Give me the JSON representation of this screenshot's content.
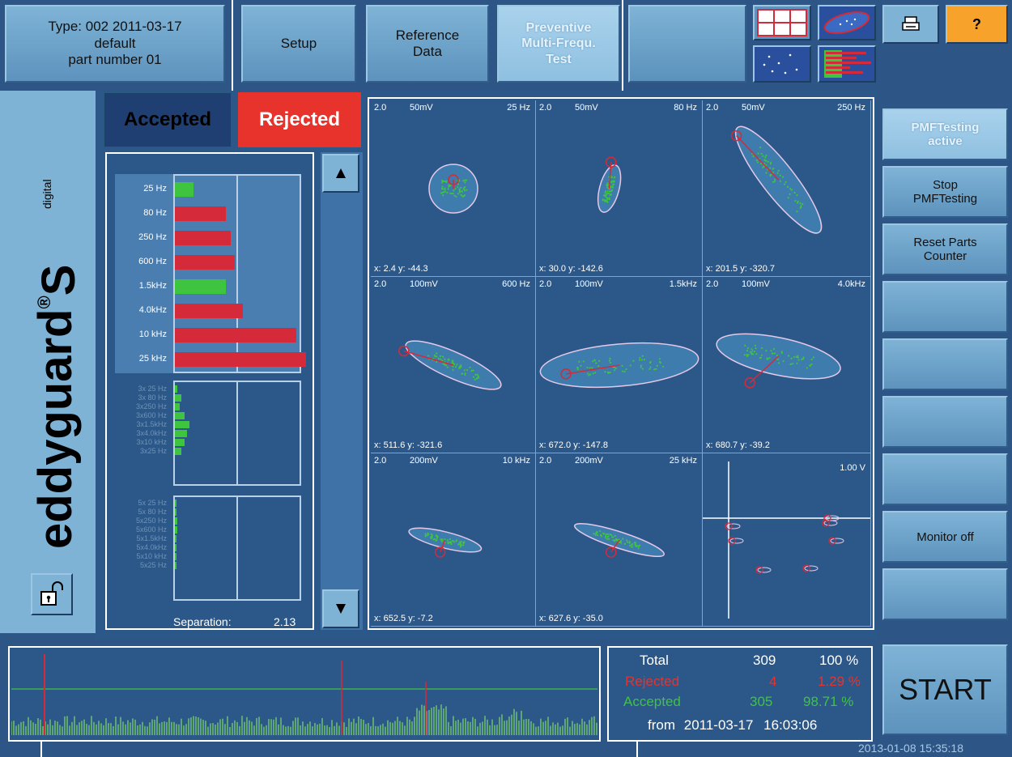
{
  "header": {
    "type_line": "Type: 002   2011-03-17",
    "profile": "default",
    "part": "part number 01",
    "tabs": [
      {
        "label": "Setup"
      },
      {
        "label": "Reference\nData"
      },
      {
        "label": "Preventive\nMulti-Frequ.\nTest"
      },
      {
        "label": ""
      }
    ],
    "view_icons": [
      "grid-view-icon",
      "ellipse-view-icon",
      "scatter-view-icon",
      "bar-view-icon"
    ],
    "print_icon": "printer-icon",
    "help_label": "?"
  },
  "brand": {
    "name": "eddyguard",
    "reg": "®",
    "suffix": "S",
    "sub": "digital"
  },
  "lock_icon": "unlock-icon",
  "status": {
    "accepted_label": "Accepted",
    "rejected_label": "Rejected"
  },
  "frequencies": {
    "bars": [
      {
        "label": "25 Hz",
        "value": 0.15,
        "status": "accepted"
      },
      {
        "label": "80 Hz",
        "value": 0.42,
        "status": "rejected"
      },
      {
        "label": "250 Hz",
        "value": 0.46,
        "status": "rejected"
      },
      {
        "label": "600 Hz",
        "value": 0.49,
        "status": "rejected"
      },
      {
        "label": "1.5kHz",
        "value": 0.42,
        "status": "accepted"
      },
      {
        "label": "4.0kHz",
        "value": 0.56,
        "status": "rejected"
      },
      {
        "label": "10 kHz",
        "value": 1.0,
        "status": "rejected"
      },
      {
        "label": "25 kHz",
        "value": 1.08,
        "status": "rejected"
      }
    ],
    "x3": [
      {
        "label": "3x 25 Hz",
        "value": 0.02
      },
      {
        "label": "3x 80 Hz",
        "value": 0.05
      },
      {
        "label": "3x250 Hz",
        "value": 0.04
      },
      {
        "label": "3x600 Hz",
        "value": 0.08
      },
      {
        "label": "3x1.5kHz",
        "value": 0.12
      },
      {
        "label": "3x4.0kHz",
        "value": 0.1
      },
      {
        "label": "3x10 kHz",
        "value": 0.08
      },
      {
        "label": "3x25 Hz",
        "value": 0.05
      }
    ],
    "x5": [
      {
        "label": "5x 25 Hz",
        "value": 0.01
      },
      {
        "label": "5x 80 Hz",
        "value": 0.01
      },
      {
        "label": "5x250 Hz",
        "value": 0.02
      },
      {
        "label": "5x600 Hz",
        "value": 0.02
      },
      {
        "label": "5x1.5kHz",
        "value": 0.01
      },
      {
        "label": "5x4.0kHz",
        "value": 0.01
      },
      {
        "label": "5x10 kHz",
        "value": 0.01
      },
      {
        "label": "5x25 Hz",
        "value": 0.01
      }
    ],
    "separation_label": "Separation:",
    "separation_value": "2.13"
  },
  "plots": [
    {
      "gain": "2.0",
      "range": "50mV",
      "freq": "25 Hz",
      "coord": "x: 2.4   y: -44.3"
    },
    {
      "gain": "2.0",
      "range": "50mV",
      "freq": "80 Hz",
      "coord": "x: 30.0  y: -142.6"
    },
    {
      "gain": "2.0",
      "range": "50mV",
      "freq": "250 Hz",
      "coord": "x: 201.5 y: -320.7"
    },
    {
      "gain": "2.0",
      "range": "100mV",
      "freq": "600 Hz",
      "coord": "x: 511.6 y: -321.6"
    },
    {
      "gain": "2.0",
      "range": "100mV",
      "freq": "1.5kHz",
      "coord": "x: 672.0 y: -147.8"
    },
    {
      "gain": "2.0",
      "range": "100mV",
      "freq": "4.0kHz",
      "coord": "x: 680.7 y: -39.2"
    },
    {
      "gain": "2.0",
      "range": "200mV",
      "freq": "10 kHz",
      "coord": "x: 652.5 y: -7.2"
    },
    {
      "gain": "2.0",
      "range": "200mV",
      "freq": "25 kHz",
      "coord": "x: 627.6 y: -35.0"
    },
    {
      "gain": "",
      "range": "",
      "freq": "1.00 V",
      "coord": ""
    }
  ],
  "side_buttons": [
    {
      "label": "PMFTesting\nactive"
    },
    {
      "label": "Stop\nPMFTesting"
    },
    {
      "label": "Reset Parts\nCounter"
    },
    {
      "label": ""
    },
    {
      "label": ""
    },
    {
      "label": ""
    },
    {
      "label": ""
    },
    {
      "label": "Monitor off"
    },
    {
      "label": ""
    }
  ],
  "stats": {
    "total_label": "Total",
    "total_count": "309",
    "total_pct": "100 %",
    "rejected_label": "Rejected",
    "rejected_count": "4",
    "rejected_pct": "1.29 %",
    "accepted_label": "Accepted",
    "accepted_count": "305",
    "accepted_pct": "98.71 %",
    "from_label": "from",
    "from_date": "2011-03-17",
    "from_time": "16:03:06"
  },
  "start_label": "START",
  "clock": "2013-01-08  15:35:18",
  "colors": {
    "accepted": "#3ec43e",
    "rejected": "#d42a3a",
    "panel": "#2c5889"
  }
}
